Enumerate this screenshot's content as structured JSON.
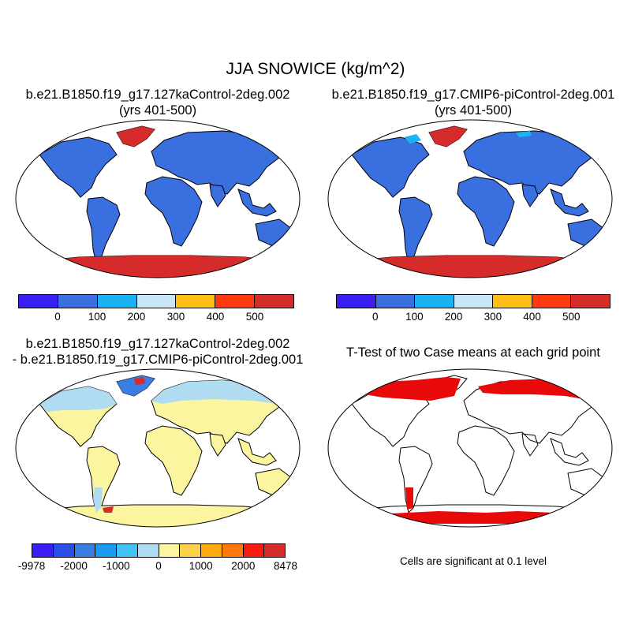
{
  "title": "JJA SNOWICE (kg/m^2)",
  "panels": {
    "case1": {
      "title_line1": "b.e21.B1850.f19_g17.127kaControl-2deg.002",
      "title_line2": "(yrs 401-500)"
    },
    "case2": {
      "title_line1": "b.e21.B1850.f19_g17.CMIP6-piControl-2deg.001",
      "title_line2": "(yrs 401-500)"
    },
    "diff": {
      "title_line1": "b.e21.B1850.f19_g17.127kaControl-2deg.002",
      "title_line2": "- b.e21.B1850.f19_g17.CMIP6-piControl-2deg.001"
    },
    "ttest": {
      "title_line1": "T-Test of two Case means at each grid point",
      "note": "Cells are significant at 0.1 level"
    }
  },
  "colorbars": {
    "abs": {
      "colors": [
        "#3a1ff5",
        "#3a6fe0",
        "#1ab2f0",
        "#c7e6f7",
        "#ffbf16",
        "#ff3a0e",
        "#d62b2b"
      ],
      "labels": [
        "0",
        "100",
        "200",
        "300",
        "400",
        "500"
      ]
    },
    "diff": {
      "colors": [
        "#3a1ff5",
        "#2b4fe6",
        "#3a7ee3",
        "#1a9bf0",
        "#44c1f5",
        "#b0dcf2",
        "#fcf5a0",
        "#ffd14a",
        "#ffaa10",
        "#ff7a0e",
        "#f51b0e",
        "#d62b2b"
      ],
      "labels": [
        "-9978",
        "-2000",
        "-1000",
        "0",
        "1000",
        "2000",
        "8478"
      ]
    }
  },
  "map_colors": {
    "land_case": "#3a6fe0",
    "high_snow": "#d62b2b",
    "mid_snow": "#1ab2f0",
    "diff_land": "#fcf5a0",
    "diff_neg": "#b0dcf2",
    "diff_neg_strong": "#3a7ee3",
    "diff_pos": "#d62b2b",
    "significant": "#e80a0a"
  }
}
